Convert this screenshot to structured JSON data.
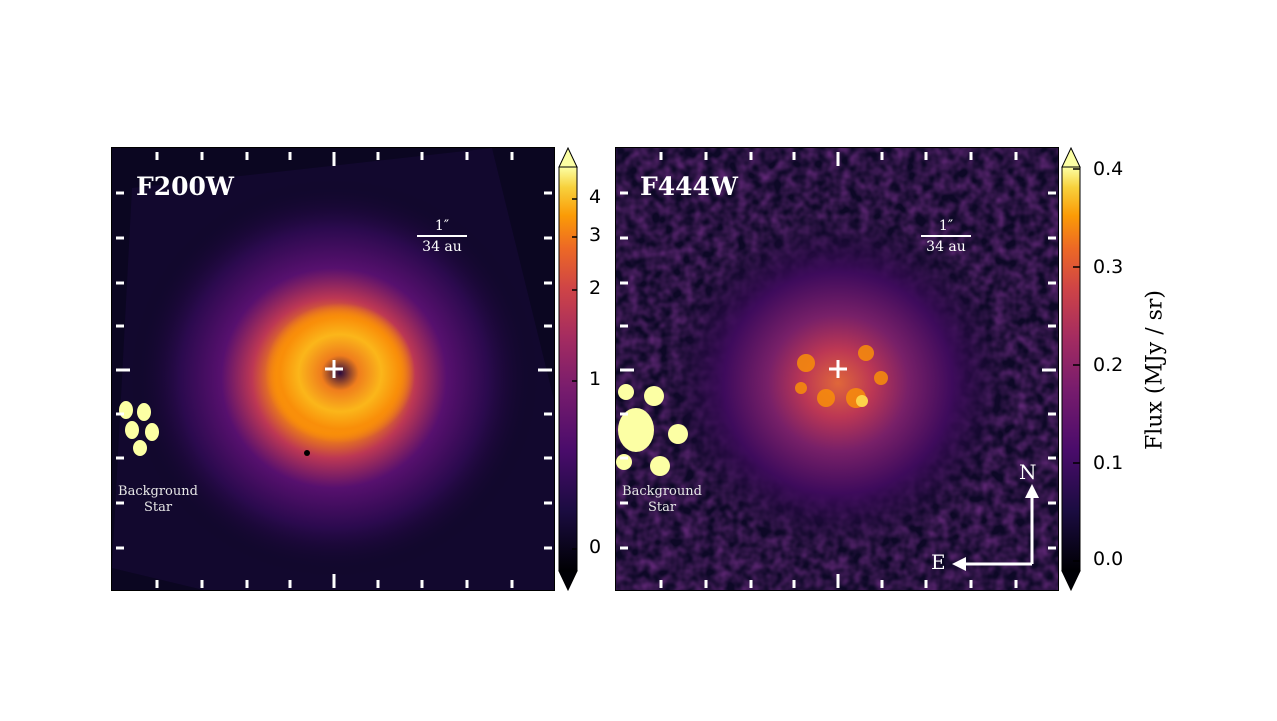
{
  "left_panel": {
    "filter": "F200W",
    "scalebar_top": "1″",
    "scalebar_bottom": "34 au",
    "background_star_label_line1": "Background",
    "background_star_label_line2": "Star"
  },
  "right_panel": {
    "filter": "F444W",
    "scalebar_top": "1″",
    "scalebar_bottom": "34 au",
    "background_star_label_line1": "Background",
    "background_star_label_line2": "Star",
    "compass_north": "N",
    "compass_east": "E"
  },
  "left_colorbar": {
    "tick_labels": [
      "4",
      "3",
      "2",
      "1",
      "0"
    ],
    "scale": "asinh"
  },
  "right_colorbar": {
    "title": "Flux (MJy / sr)",
    "tick_labels": [
      "0.4",
      "0.3",
      "0.2",
      "0.1",
      "0.0"
    ],
    "colormap": "inferno"
  },
  "colors": {
    "bg_dark": "#0b0621",
    "accent_bright": "#fcffa4",
    "accent_orange": "#f98e09",
    "accent_purple": "#57106e"
  }
}
